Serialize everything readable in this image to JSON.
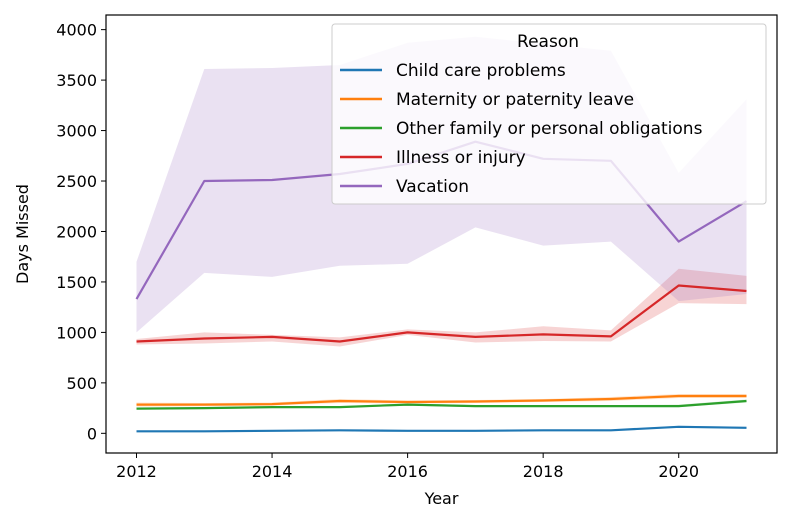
{
  "chart_data": {
    "type": "line",
    "title": "",
    "xlabel": "Year",
    "ylabel": "Days Missed",
    "xlim": [
      2011.55,
      2021.45
    ],
    "ylim": [
      -195,
      4145
    ],
    "xticks": [
      2012,
      2014,
      2016,
      2018,
      2020
    ],
    "yticks": [
      0,
      500,
      1000,
      1500,
      2000,
      2500,
      3000,
      3500,
      4000
    ],
    "x": [
      2012,
      2013,
      2014,
      2015,
      2016,
      2017,
      2018,
      2019,
      2020,
      2021
    ],
    "grid": false,
    "legend": {
      "title": "Reason",
      "placement": "top-right"
    },
    "series": [
      {
        "name": "Child care problems",
        "color": "#1f77b4",
        "values": [
          20,
          20,
          25,
          30,
          25,
          25,
          30,
          30,
          65,
          55
        ],
        "ci_low": [
          15,
          15,
          20,
          25,
          20,
          20,
          25,
          25,
          55,
          45
        ],
        "ci_high": [
          25,
          25,
          30,
          35,
          30,
          30,
          35,
          35,
          75,
          65
        ]
      },
      {
        "name": "Maternity or paternity leave",
        "color": "#ff7f0e",
        "values": [
          285,
          285,
          290,
          320,
          310,
          315,
          325,
          340,
          370,
          370
        ],
        "ci_low": [
          265,
          270,
          275,
          300,
          295,
          300,
          310,
          320,
          350,
          350
        ],
        "ci_high": [
          305,
          300,
          305,
          340,
          325,
          330,
          340,
          360,
          390,
          390
        ]
      },
      {
        "name": "Other family or personal obligations",
        "color": "#2ca02c",
        "values": [
          245,
          250,
          260,
          260,
          285,
          270,
          270,
          270,
          270,
          320
        ],
        "ci_low": [
          235,
          240,
          250,
          250,
          275,
          260,
          260,
          260,
          260,
          305
        ],
        "ci_high": [
          255,
          260,
          270,
          270,
          295,
          280,
          280,
          280,
          285,
          335
        ]
      },
      {
        "name": "Illness or injury",
        "color": "#d62728",
        "values": [
          910,
          940,
          955,
          910,
          1000,
          955,
          980,
          960,
          1465,
          1410
        ],
        "ci_low": [
          880,
          890,
          910,
          860,
          975,
          900,
          915,
          910,
          1290,
          1280
        ],
        "ci_high": [
          935,
          1000,
          975,
          950,
          1030,
          1000,
          1060,
          1020,
          1630,
          1560
        ]
      },
      {
        "name": "Vacation",
        "color": "#9467bd",
        "values": [
          1330,
          2500,
          2510,
          2570,
          2670,
          2890,
          2720,
          2700,
          1900,
          2300
        ],
        "ci_low": [
          1000,
          1590,
          1550,
          1660,
          1680,
          2040,
          1860,
          1900,
          1310,
          1380
        ],
        "ci_high": [
          1700,
          3610,
          3620,
          3650,
          3870,
          3930,
          3860,
          3790,
          2580,
          3310
        ]
      }
    ]
  }
}
